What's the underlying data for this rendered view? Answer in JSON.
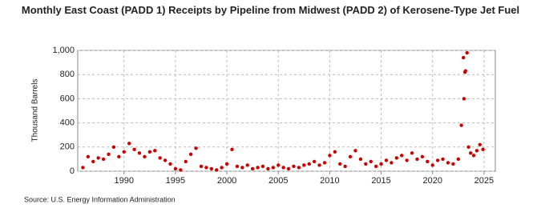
{
  "chart_data": {
    "type": "scatter",
    "title": "Monthly East Coast (PADD 1) Receipts by Pipeline from Midwest (PADD 2) of Kerosene-Type Jet Fuel",
    "y_axis_label": "Thousand Barrels",
    "source": "Source: U.S. Energy Information Administration",
    "xlim": [
      1985.5,
      2026.1
    ],
    "xticks": [
      1990,
      1995,
      2000,
      2005,
      2010,
      2015,
      2020,
      2025
    ],
    "ylim": [
      0,
      1000
    ],
    "yticks": [
      0,
      200,
      400,
      600,
      800,
      {
        "value": 1000,
        "label": "1,000"
      }
    ],
    "grid": true,
    "series": [
      {
        "color": "#cc0000",
        "x": [
          1986.0,
          1986.5,
          1987.0,
          1987.5,
          1988.0,
          1988.5,
          1989.0,
          1989.5,
          1990.0,
          1990.5,
          1991.0,
          1991.5,
          1992.0,
          1992.5,
          1993.0,
          1993.5,
          1994.0,
          1994.5,
          1995.0,
          1995.5,
          1996.0,
          1996.5,
          1997.0,
          1997.5,
          1998.0,
          1998.5,
          1999.0,
          1999.5,
          2000.0,
          2000.5,
          2001.0,
          2001.5,
          2002.0,
          2002.5,
          2003.0,
          2003.5,
          2004.0,
          2004.5,
          2005.0,
          2005.5,
          2006.0,
          2006.5,
          2007.0,
          2007.5,
          2008.0,
          2008.5,
          2009.0,
          2009.5,
          2010.0,
          2010.5,
          2011.0,
          2011.5,
          2012.0,
          2012.5,
          2013.0,
          2013.5,
          2014.0,
          2014.5,
          2015.0,
          2015.5,
          2016.0,
          2016.5,
          2017.0,
          2017.5,
          2018.0,
          2018.5,
          2019.0,
          2019.5,
          2020.0,
          2020.5,
          2021.0,
          2021.5,
          2022.0,
          2022.5,
          2022.8,
          2023.0,
          2023.05,
          2023.15,
          2023.2,
          2023.35,
          2023.5,
          2023.7,
          2024.0,
          2024.3,
          2024.6,
          2024.9
        ],
        "values": [
          30,
          120,
          80,
          110,
          100,
          140,
          200,
          120,
          160,
          230,
          180,
          150,
          120,
          160,
          170,
          110,
          90,
          60,
          20,
          10,
          80,
          140,
          190,
          40,
          30,
          20,
          10,
          30,
          60,
          180,
          40,
          30,
          50,
          20,
          30,
          40,
          20,
          30,
          50,
          30,
          20,
          40,
          30,
          50,
          60,
          80,
          50,
          70,
          130,
          160,
          60,
          40,
          120,
          170,
          100,
          60,
          80,
          40,
          60,
          90,
          70,
          110,
          130,
          90,
          150,
          100,
          120,
          80,
          50,
          90,
          100,
          70,
          60,
          100,
          380,
          940,
          600,
          820,
          830,
          980,
          200,
          150,
          130,
          170,
          220,
          180
        ]
      }
    ]
  }
}
